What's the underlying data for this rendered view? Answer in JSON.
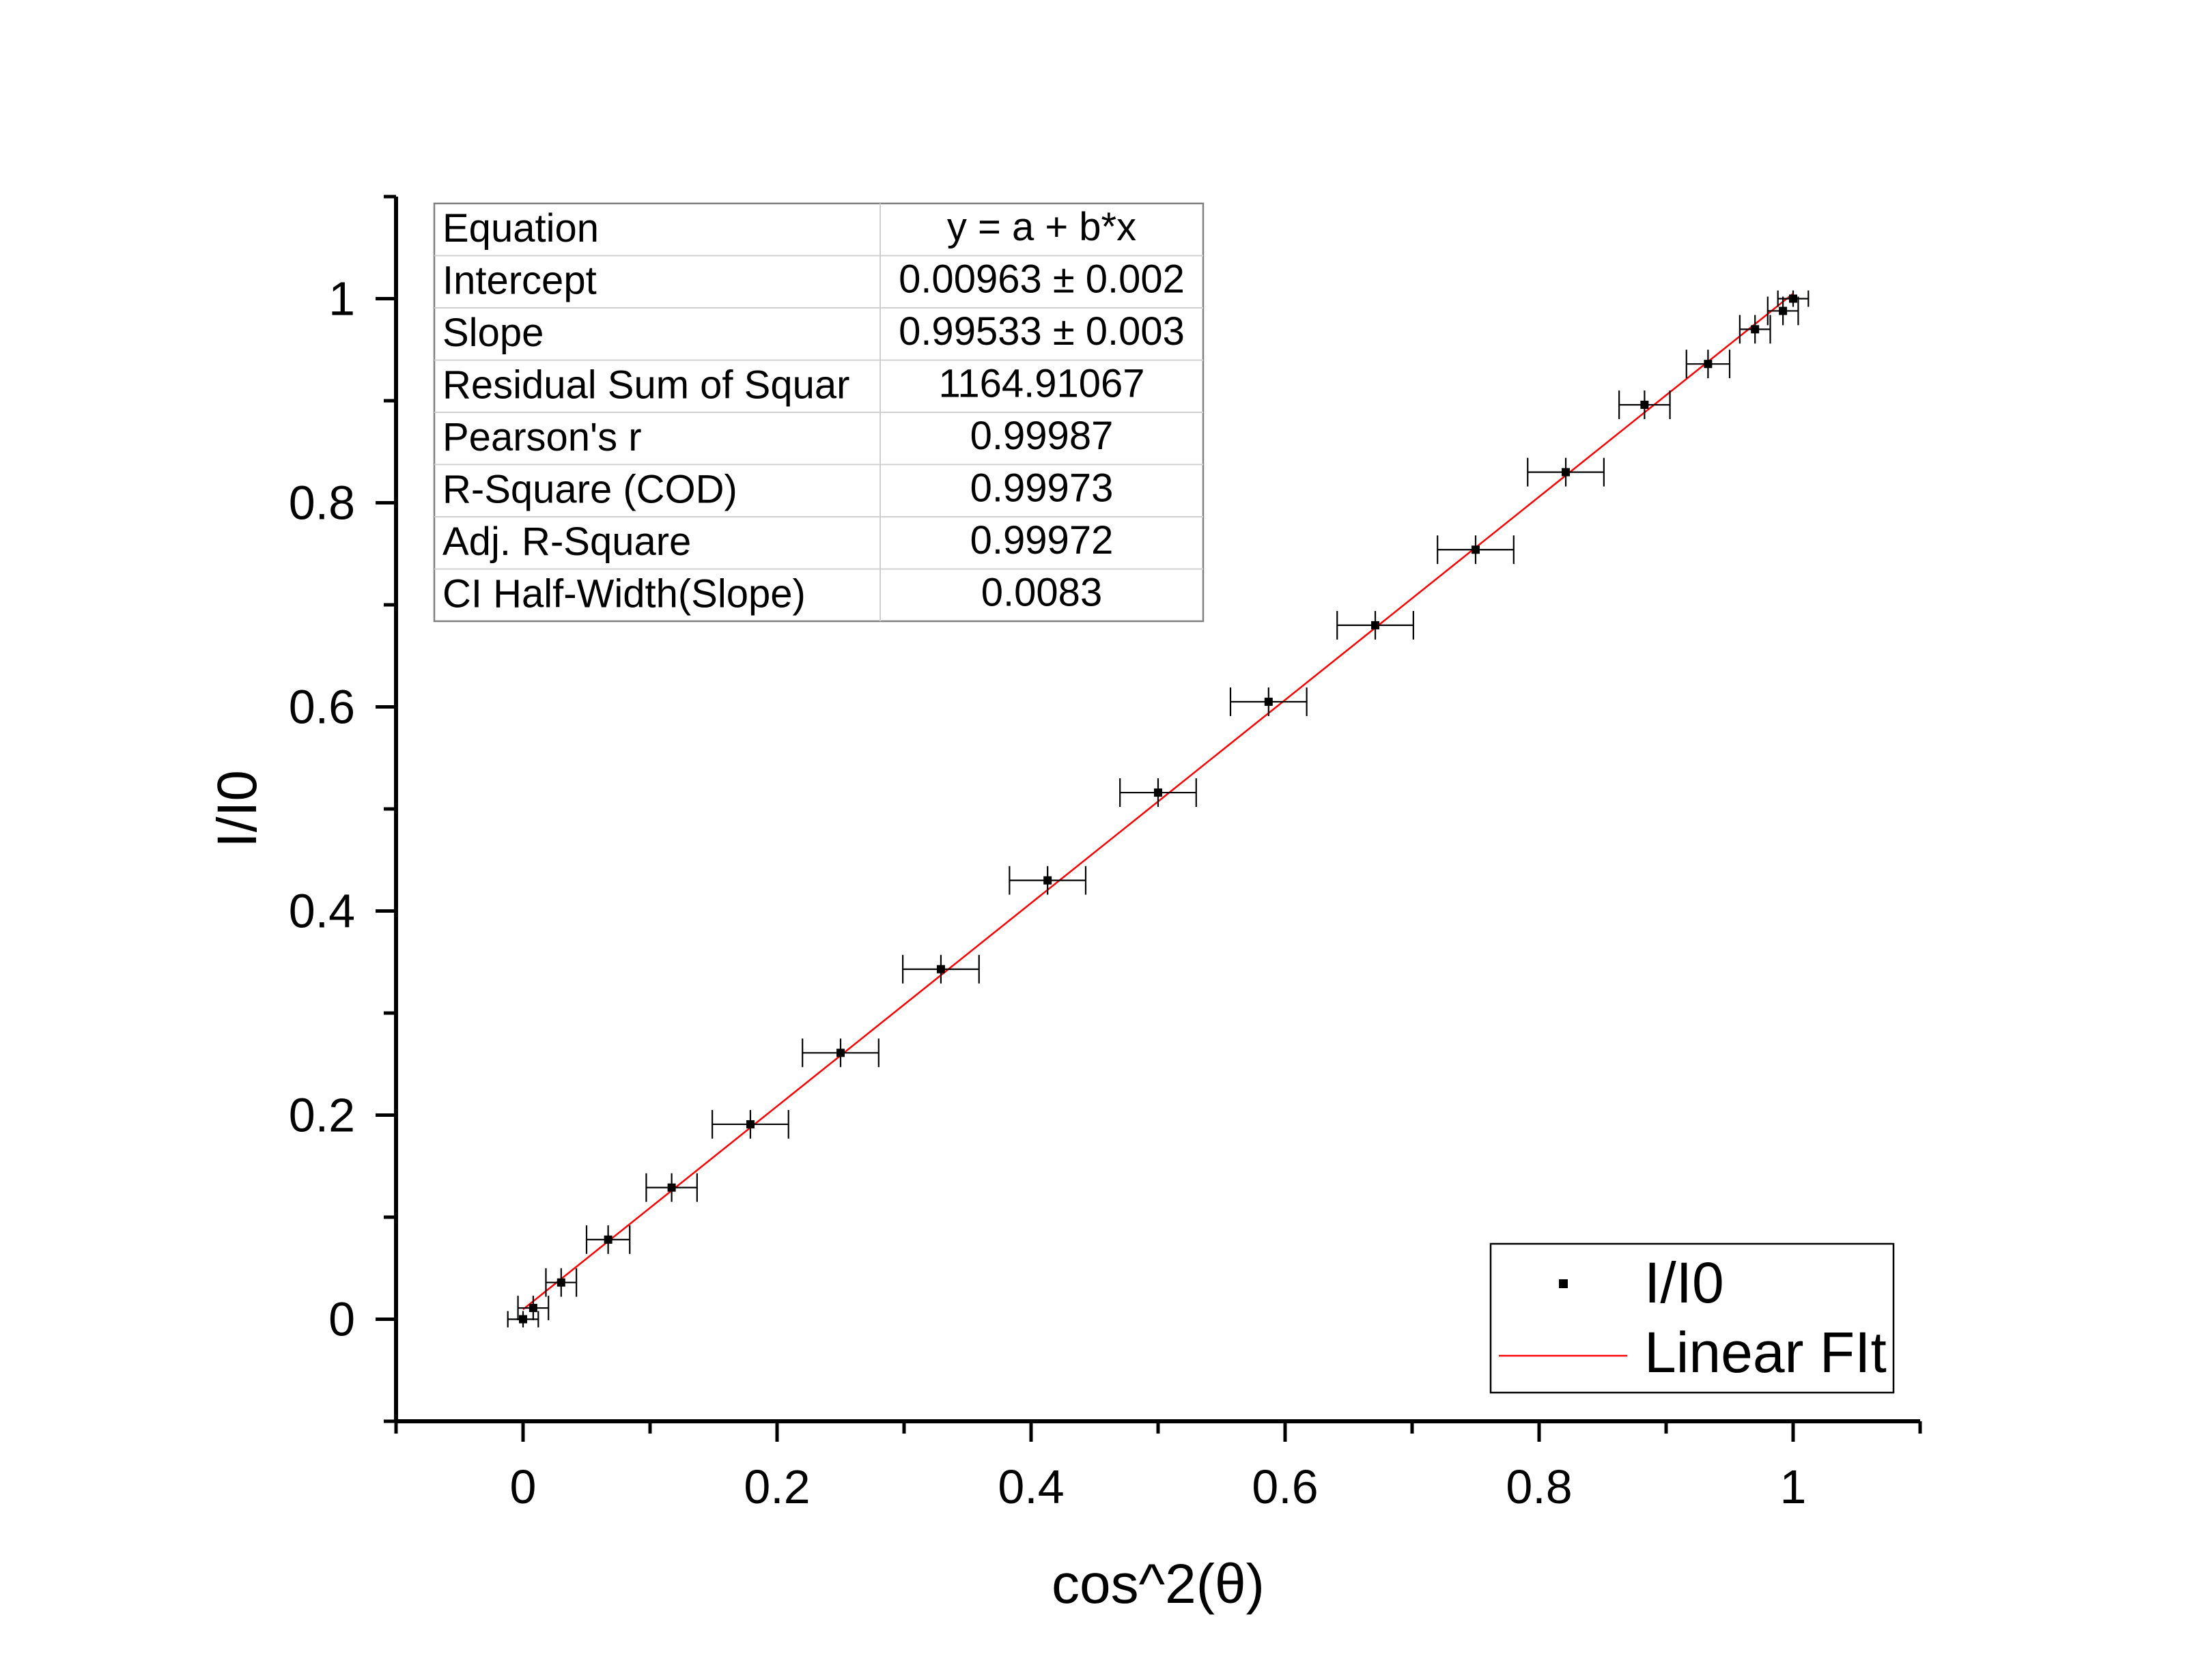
{
  "chart_data": {
    "type": "scatter",
    "xlabel": "cos^2(θ)",
    "ylabel": "I/I0",
    "xlim": [
      -0.1,
      1.1
    ],
    "ylim": [
      -0.1,
      1.1
    ],
    "x_ticks": [
      0,
      0.2,
      0.4,
      0.6,
      0.8,
      1
    ],
    "y_ticks": [
      0,
      0.2,
      0.4,
      0.6,
      0.8,
      1
    ],
    "x_tick_labels": [
      "0",
      "0.2",
      "0.4",
      "0.6",
      "0.8",
      "1"
    ],
    "y_tick_labels": [
      "0",
      "0.2",
      "0.4",
      "0.6",
      "0.8",
      "1"
    ],
    "grid": false,
    "legend": {
      "position": "bottom-right",
      "entries": [
        "I/I0",
        "Linear FIt"
      ]
    },
    "series": [
      {
        "name": "I/I0",
        "marker": "square",
        "color": "#000000",
        "x": [
          0.0,
          0.008,
          0.03,
          0.067,
          0.117,
          0.179,
          0.25,
          0.329,
          0.413,
          0.5,
          0.587,
          0.671,
          0.75,
          0.821,
          0.883,
          0.933,
          0.97,
          0.992,
          1.0
        ],
        "y": [
          0.0,
          0.011,
          0.036,
          0.078,
          0.129,
          0.191,
          0.261,
          0.343,
          0.43,
          0.516,
          0.605,
          0.68,
          0.754,
          0.83,
          0.896,
          0.936,
          0.97,
          0.988,
          1.0
        ],
        "x_err": [
          0.012,
          0.012,
          0.012,
          0.017,
          0.02,
          0.03,
          0.03,
          0.03,
          0.03,
          0.03,
          0.03,
          0.03,
          0.03,
          0.03,
          0.02,
          0.017,
          0.012,
          0.012,
          0.012
        ],
        "y_err": [
          0.008,
          0.012,
          0.014,
          0.014,
          0.014,
          0.014,
          0.014,
          0.014,
          0.014,
          0.014,
          0.014,
          0.014,
          0.014,
          0.014,
          0.014,
          0.014,
          0.014,
          0.014,
          0.008
        ]
      },
      {
        "name": "Linear FIt",
        "line": true,
        "color": "#ff0000",
        "intercept": 0.00963,
        "slope": 0.99533,
        "x_range": [
          0.0,
          1.0
        ]
      }
    ],
    "stats_table": {
      "rows": [
        [
          "Equation",
          "y = a + b*x"
        ],
        [
          "Intercept",
          "0.00963 ± 0.002"
        ],
        [
          "Slope",
          "0.99533 ± 0.003"
        ],
        [
          "Residual Sum of Squar",
          "1164.91067"
        ],
        [
          "Pearson's r",
          "0.99987"
        ],
        [
          "R-Square (COD)",
          "0.99973"
        ],
        [
          "Adj. R-Square",
          "0.99972"
        ],
        [
          "CI Half-Width(Slope)",
          "0.0083"
        ]
      ]
    }
  }
}
